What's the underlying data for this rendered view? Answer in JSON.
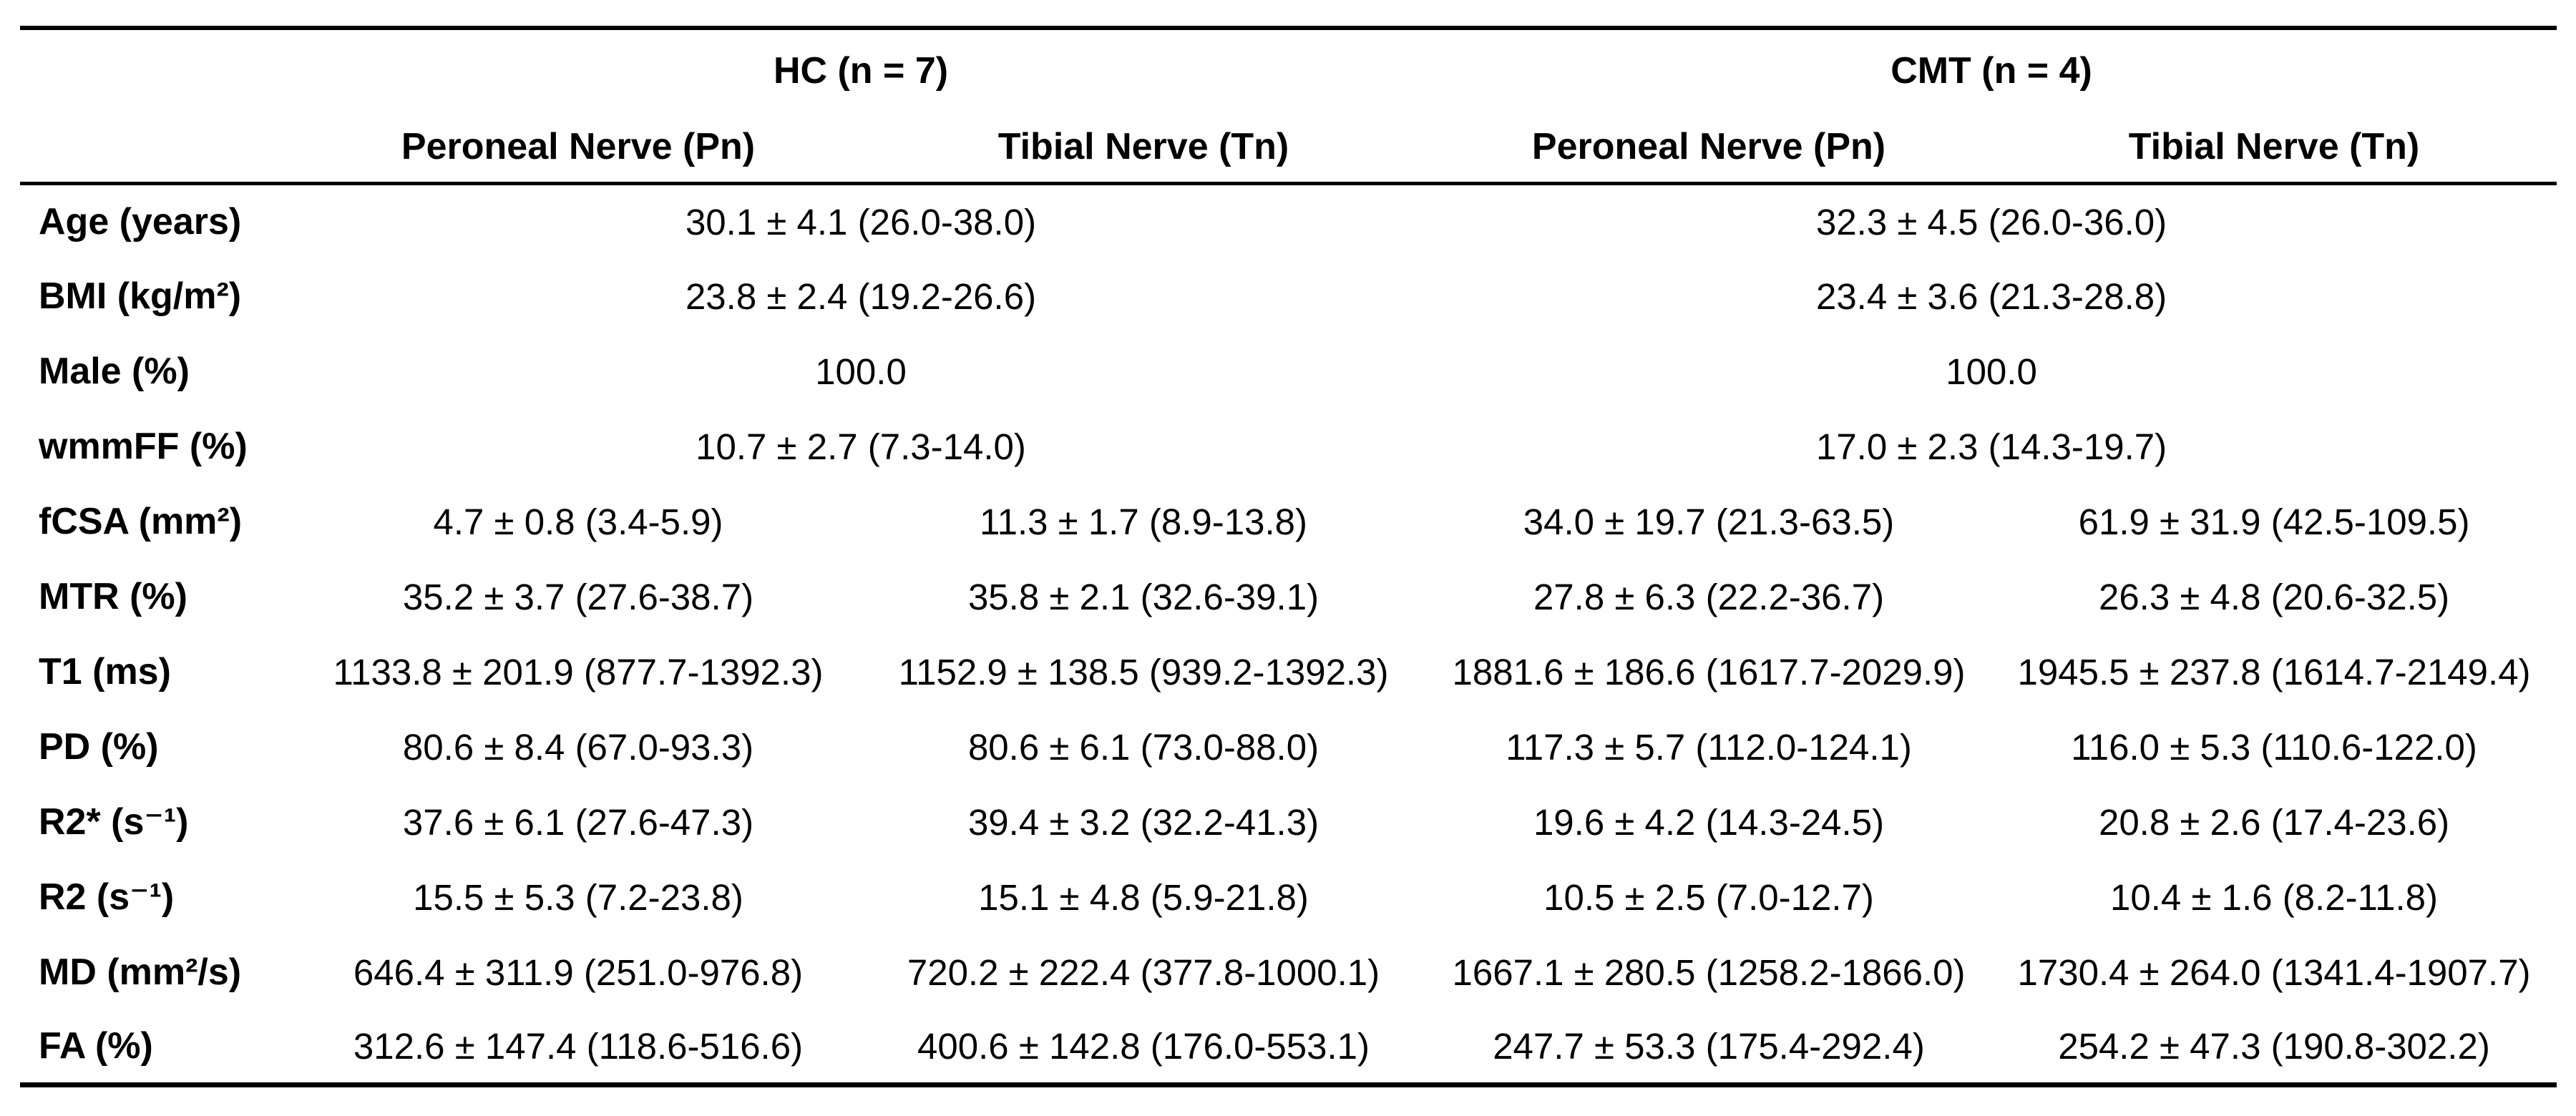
{
  "colors": {
    "text": "#000000",
    "background": "#ffffff",
    "rule": "#000000"
  },
  "table": {
    "groups": [
      {
        "label": "HC (n = 7)"
      },
      {
        "label": "CMT (n = 4)"
      }
    ],
    "columns": [
      "Peroneal Nerve (Pn)",
      "Tibial Nerve (Tn)",
      "Peroneal Nerve (Pn)",
      "Tibial Nerve (Tn)"
    ],
    "rows": [
      {
        "label": "Age (years)",
        "type": "group-span",
        "hc": "30.1 ± 4.1 (26.0-38.0)",
        "cmt": "32.3 ± 4.5 (26.0-36.0)"
      },
      {
        "label": "BMI (kg/m²)",
        "type": "group-span",
        "hc": "23.8 ± 2.4 (19.2-26.6)",
        "cmt": "23.4 ± 3.6 (21.3-28.8)"
      },
      {
        "label": "Male (%)",
        "type": "group-span",
        "hc": "100.0",
        "cmt": "100.0"
      },
      {
        "label": "wmmFF (%)",
        "type": "group-span",
        "hc": "10.7 ± 2.7 (7.3-14.0)",
        "cmt": "17.0 ± 2.3 (14.3-19.7)"
      },
      {
        "label": "fCSA (mm²)",
        "type": "per-nerve",
        "values": [
          "4.7 ± 0.8 (3.4-5.9)",
          "11.3 ± 1.7 (8.9-13.8)",
          "34.0 ± 19.7 (21.3-63.5)",
          "61.9 ± 31.9 (42.5-109.5)"
        ]
      },
      {
        "label": "MTR (%)",
        "type": "per-nerve",
        "values": [
          "35.2 ± 3.7 (27.6-38.7)",
          "35.8 ± 2.1 (32.6-39.1)",
          "27.8 ± 6.3 (22.2-36.7)",
          "26.3 ± 4.8 (20.6-32.5)"
        ]
      },
      {
        "label": "T1 (ms)",
        "type": "per-nerve",
        "values": [
          "1133.8 ± 201.9 (877.7-1392.3)",
          "1152.9 ± 138.5 (939.2-1392.3)",
          "1881.6 ± 186.6 (1617.7-2029.9)",
          "1945.5 ± 237.8 (1614.7-2149.4)"
        ]
      },
      {
        "label": "PD (%)",
        "type": "per-nerve",
        "values": [
          "80.6 ± 8.4 (67.0-93.3)",
          "80.6 ± 6.1 (73.0-88.0)",
          "117.3 ± 5.7 (112.0-124.1)",
          "116.0 ± 5.3 (110.6-122.0)"
        ]
      },
      {
        "label": "R2* (s⁻¹)",
        "type": "per-nerve",
        "values": [
          "37.6 ± 6.1 (27.6-47.3)",
          "39.4 ± 3.2 (32.2-41.3)",
          "19.6 ± 4.2 (14.3-24.5)",
          "20.8 ± 2.6 (17.4-23.6)"
        ]
      },
      {
        "label": "R2 (s⁻¹)",
        "type": "per-nerve",
        "values": [
          "15.5 ± 5.3 (7.2-23.8)",
          "15.1 ± 4.8 (5.9-21.8)",
          "10.5 ± 2.5 (7.0-12.7)",
          "10.4 ± 1.6 (8.2-11.8)"
        ]
      },
      {
        "label": "MD (mm²/s)",
        "type": "per-nerve",
        "values": [
          "646.4 ± 311.9 (251.0-976.8)",
          "720.2 ± 222.4 (377.8-1000.1)",
          "1667.1 ± 280.5 (1258.2-1866.0)",
          "1730.4 ± 264.0 (1341.4-1907.7)"
        ]
      },
      {
        "label": "FA (%)",
        "type": "per-nerve",
        "values": [
          "312.6 ± 147.4 (118.6-516.6)",
          "400.6 ± 142.8 (176.0-553.1)",
          "247.7 ± 53.3 (175.4-292.4)",
          "254.2 ± 47.3 (190.8-302.2)"
        ]
      }
    ]
  }
}
